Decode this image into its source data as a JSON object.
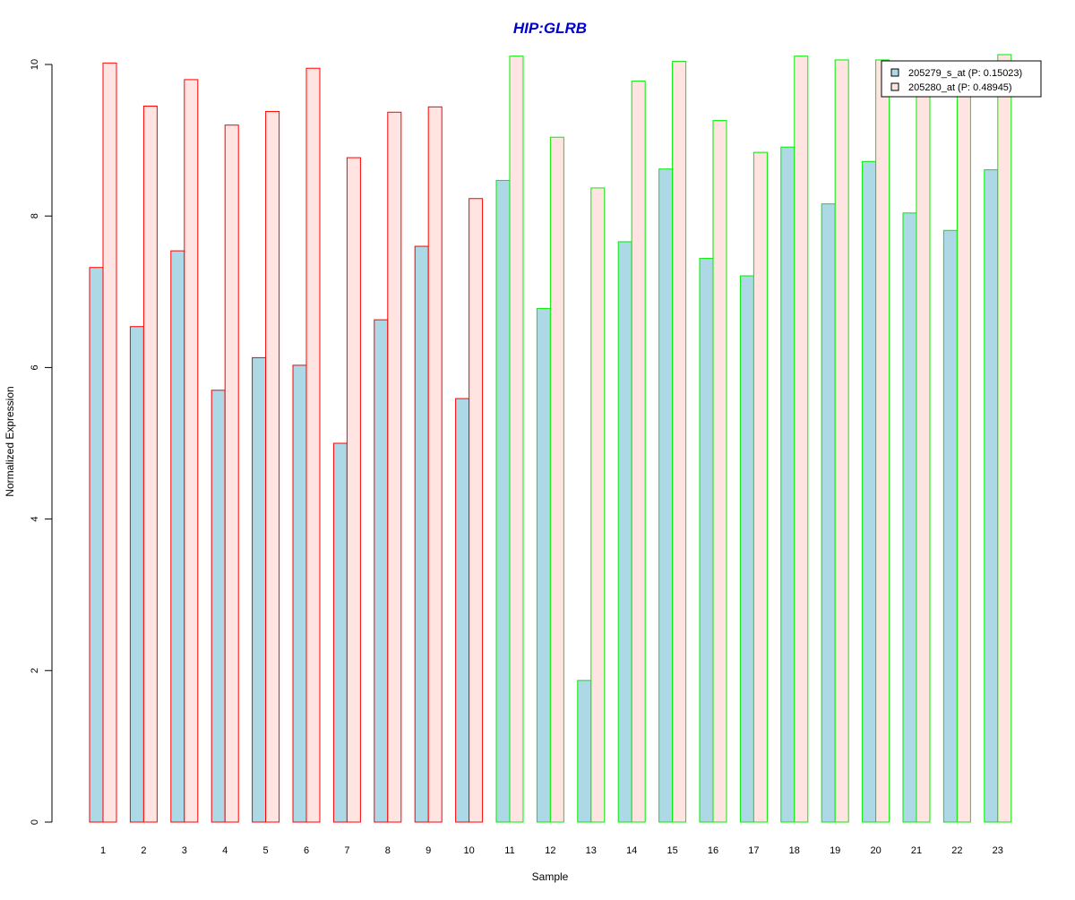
{
  "chart_data": {
    "type": "bar",
    "title": "HIP:GLRB",
    "title_color": "#0000CC",
    "xlabel": "Sample",
    "ylabel": "Normalized Expression",
    "ylim": [
      0,
      10
    ],
    "yticks": [
      0,
      2,
      4,
      6,
      8,
      10
    ],
    "categories": [
      "1",
      "2",
      "3",
      "4",
      "5",
      "6",
      "7",
      "8",
      "9",
      "10",
      "11",
      "12",
      "13",
      "14",
      "15",
      "16",
      "17",
      "18",
      "19",
      "20",
      "21",
      "22",
      "23"
    ],
    "group_border_colors": [
      "#FF0000",
      "#FF0000",
      "#FF0000",
      "#FF0000",
      "#FF0000",
      "#FF0000",
      "#FF0000",
      "#FF0000",
      "#FF0000",
      "#FF0000",
      "#00EE00",
      "#00EE00",
      "#00EE00",
      "#00EE00",
      "#00EE00",
      "#00EE00",
      "#00EE00",
      "#00EE00",
      "#00EE00",
      "#00EE00",
      "#00EE00",
      "#00EE00",
      "#00EE00"
    ],
    "series": [
      {
        "name": "205279_s_at (P: 0.15023)",
        "color": "#ADD8E6",
        "values": [
          7.32,
          6.54,
          7.54,
          5.7,
          6.13,
          6.03,
          5.0,
          6.63,
          7.6,
          5.59,
          8.47,
          6.78,
          1.87,
          7.66,
          8.62,
          7.44,
          7.21,
          8.91,
          8.16,
          8.72,
          8.04,
          7.81,
          8.61
        ]
      },
      {
        "name": "205280_at (P: 0.48945)",
        "color": "#FFE4E1",
        "values": [
          10.02,
          9.45,
          9.8,
          9.2,
          9.38,
          9.95,
          8.77,
          9.37,
          9.44,
          8.23,
          10.11,
          9.04,
          8.37,
          9.78,
          10.04,
          9.26,
          8.84,
          10.11,
          10.06,
          10.06,
          9.86,
          9.74,
          10.13
        ]
      }
    ],
    "legend_position": "top-right"
  }
}
